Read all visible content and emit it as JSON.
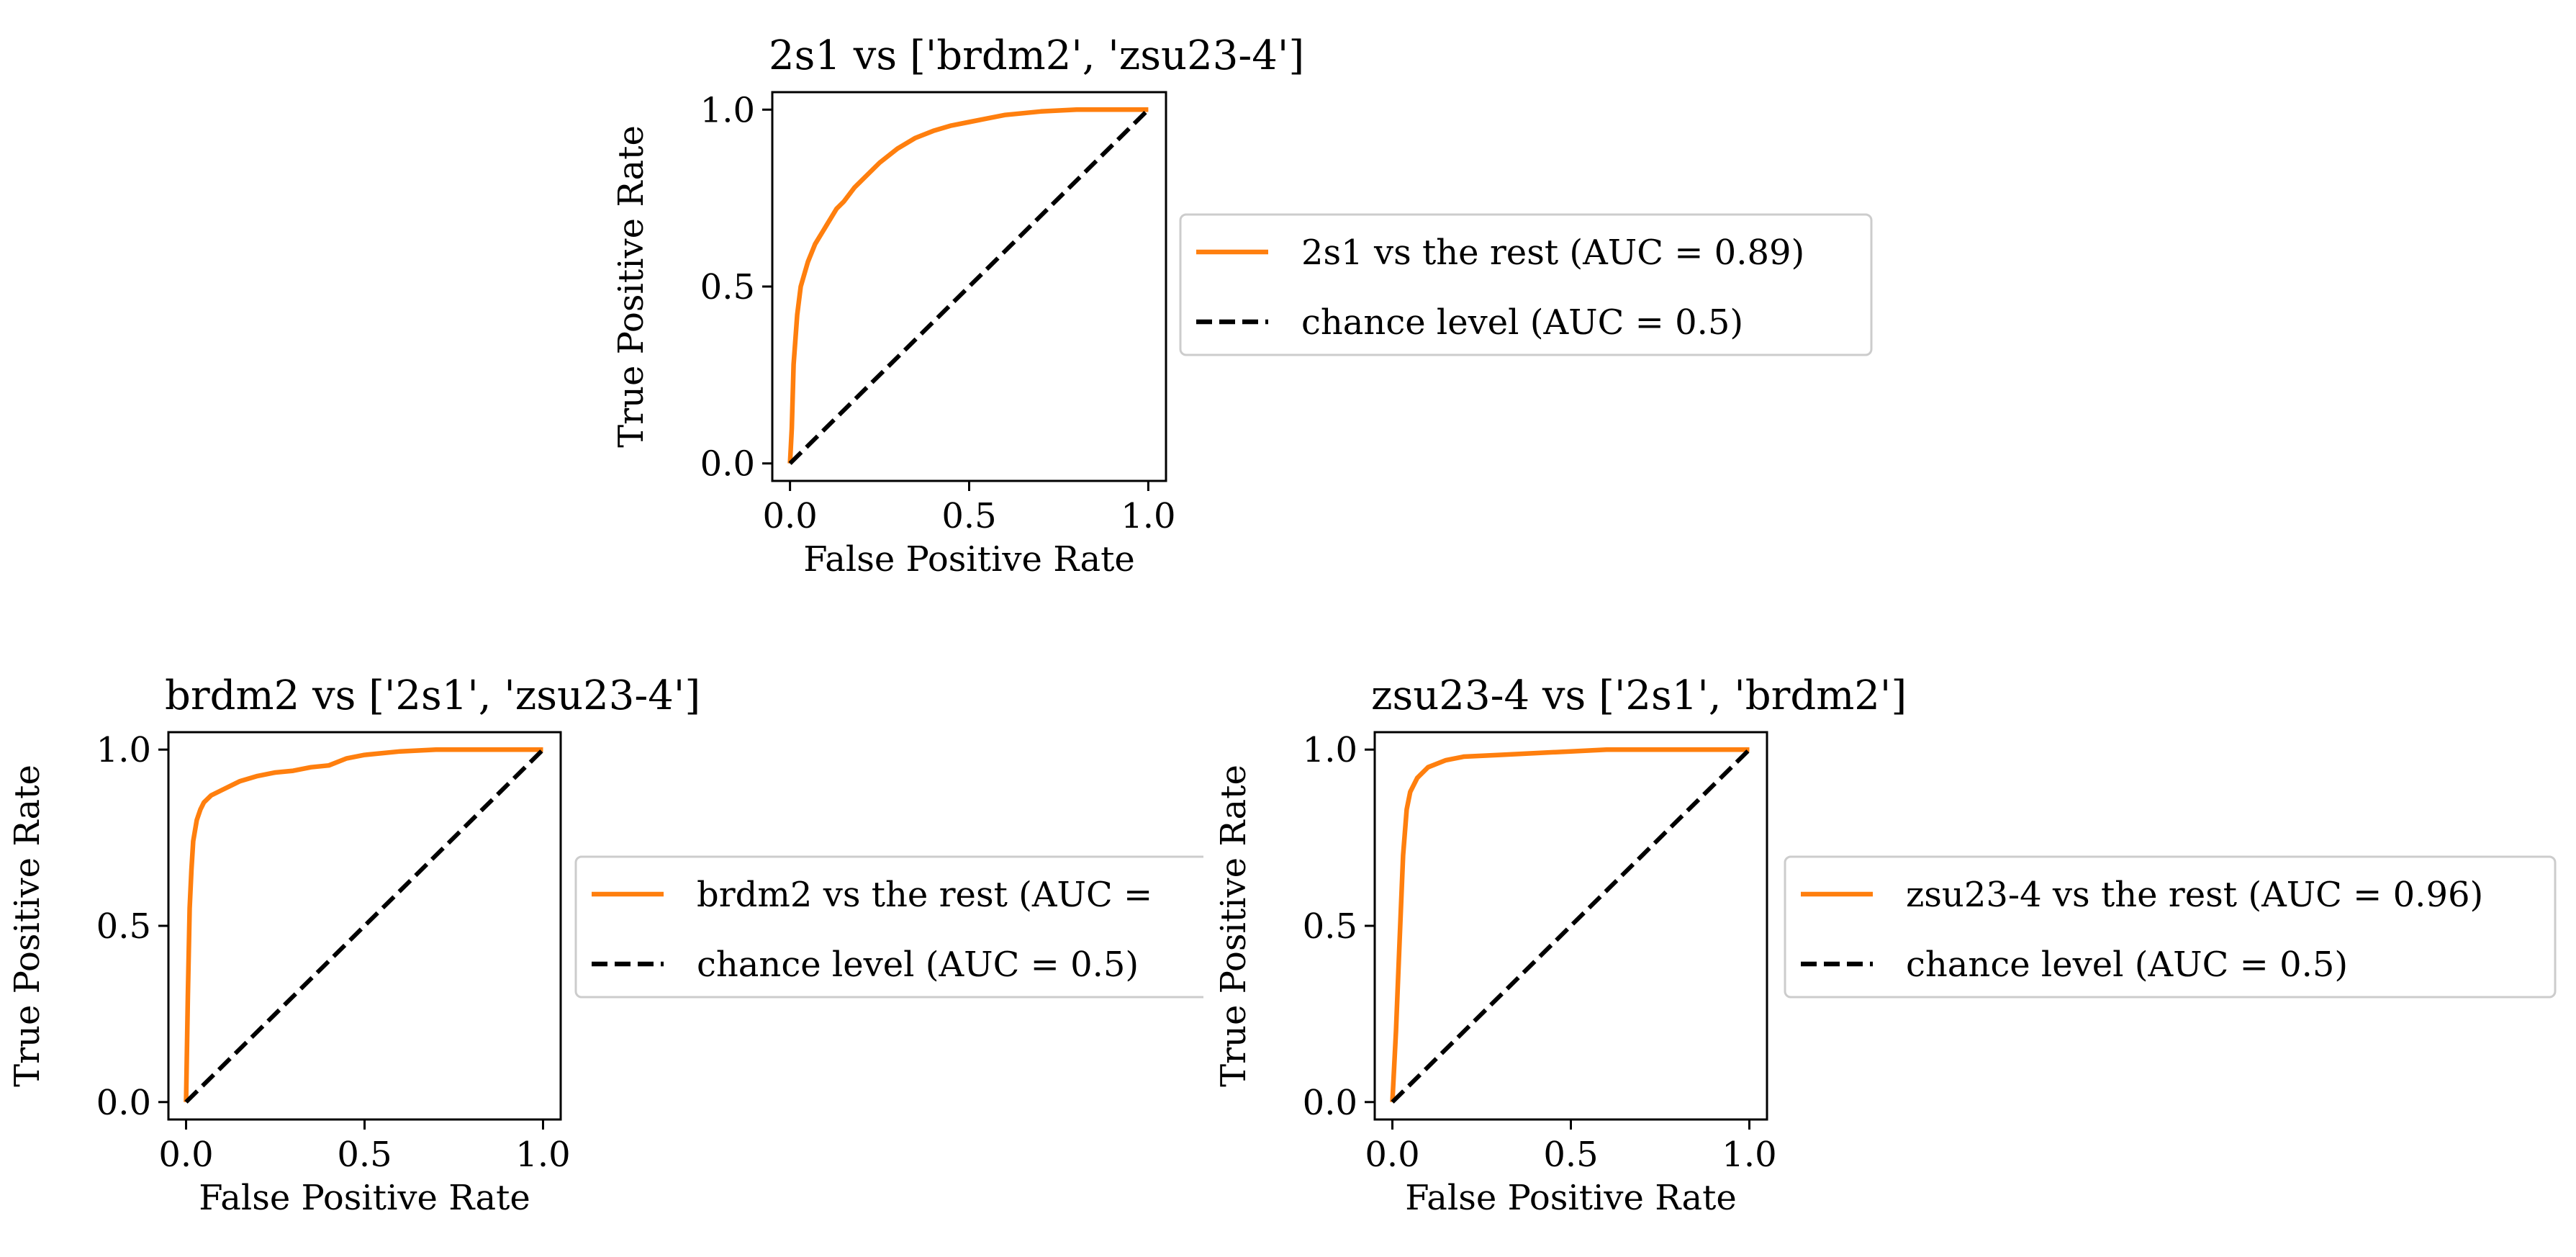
{
  "chart_data": [
    {
      "type": "line",
      "title": "2s1 vs ['brdm2', 'zsu23-4']",
      "xlabel": "False Positive Rate",
      "ylabel": "True Positive Rate",
      "xlim": [
        0,
        1
      ],
      "ylim": [
        0,
        1
      ],
      "xticks": [
        "0.0",
        "0.5",
        "1.0"
      ],
      "yticks": [
        "0.0",
        "0.5",
        "1.0"
      ],
      "grid": false,
      "legend_position": "outside-right",
      "series": [
        {
          "name": "2s1 vs the rest (AUC = 0.89)",
          "color": "#ff7f0e",
          "style": "solid",
          "x": [
            0,
            0.005,
            0.01,
            0.02,
            0.03,
            0.05,
            0.07,
            0.1,
            0.13,
            0.15,
            0.18,
            0.2,
            0.25,
            0.3,
            0.35,
            0.4,
            0.45,
            0.5,
            0.55,
            0.6,
            0.7,
            0.8,
            0.9,
            1.0
          ],
          "y": [
            0,
            0.1,
            0.28,
            0.42,
            0.5,
            0.57,
            0.62,
            0.67,
            0.72,
            0.74,
            0.78,
            0.8,
            0.85,
            0.89,
            0.92,
            0.94,
            0.955,
            0.965,
            0.975,
            0.985,
            0.995,
            1.0,
            1.0,
            1.0
          ]
        },
        {
          "name": "chance level (AUC = 0.5)",
          "color": "#000000",
          "style": "dashed",
          "x": [
            0,
            1
          ],
          "y": [
            0,
            1
          ]
        }
      ]
    },
    {
      "type": "line",
      "title": "brdm2 vs ['2s1', 'zsu23-4']",
      "xlabel": "False Positive Rate",
      "ylabel": "True Positive Rate",
      "xlim": [
        0,
        1
      ],
      "ylim": [
        0,
        1
      ],
      "xticks": [
        "0.0",
        "0.5",
        "1.0"
      ],
      "yticks": [
        "0.0",
        "0.5",
        "1.0"
      ],
      "grid": false,
      "legend_position": "outside-right",
      "series": [
        {
          "name": "brdm2 vs the rest (AUC =",
          "color": "#ff7f0e",
          "style": "solid",
          "x": [
            0,
            0.005,
            0.01,
            0.015,
            0.02,
            0.03,
            0.04,
            0.05,
            0.07,
            0.1,
            0.13,
            0.15,
            0.2,
            0.25,
            0.3,
            0.35,
            0.4,
            0.45,
            0.5,
            0.6,
            0.7,
            0.8,
            1.0
          ],
          "y": [
            0,
            0.3,
            0.55,
            0.66,
            0.74,
            0.8,
            0.83,
            0.85,
            0.87,
            0.885,
            0.9,
            0.91,
            0.925,
            0.935,
            0.94,
            0.95,
            0.955,
            0.975,
            0.985,
            0.995,
            1.0,
            1.0,
            1.0
          ]
        },
        {
          "name": "chance level (AUC = 0.5)",
          "color": "#000000",
          "style": "dashed",
          "x": [
            0,
            1
          ],
          "y": [
            0,
            1
          ]
        }
      ]
    },
    {
      "type": "line",
      "title": "zsu23-4 vs ['2s1', 'brdm2']",
      "xlabel": "False Positive Rate",
      "ylabel": "True Positive Rate",
      "xlim": [
        0,
        1
      ],
      "ylim": [
        0,
        1
      ],
      "xticks": [
        "0.0",
        "0.5",
        "1.0"
      ],
      "yticks": [
        "0.0",
        "0.5",
        "1.0"
      ],
      "grid": false,
      "legend_position": "outside-right",
      "series": [
        {
          "name": "zsu23-4 vs the rest (AUC = 0.96)",
          "color": "#ff7f0e",
          "style": "solid",
          "x": [
            0,
            0.01,
            0.02,
            0.03,
            0.04,
            0.05,
            0.07,
            0.1,
            0.15,
            0.2,
            0.3,
            0.4,
            0.5,
            0.6,
            0.7,
            1.0
          ],
          "y": [
            0,
            0.2,
            0.45,
            0.7,
            0.83,
            0.88,
            0.92,
            0.95,
            0.97,
            0.98,
            0.985,
            0.99,
            0.995,
            1.0,
            1.0,
            1.0
          ]
        },
        {
          "name": "chance level (AUC = 0.5)",
          "color": "#000000",
          "style": "dashed",
          "x": [
            0,
            1
          ],
          "y": [
            0,
            1
          ]
        }
      ]
    }
  ]
}
